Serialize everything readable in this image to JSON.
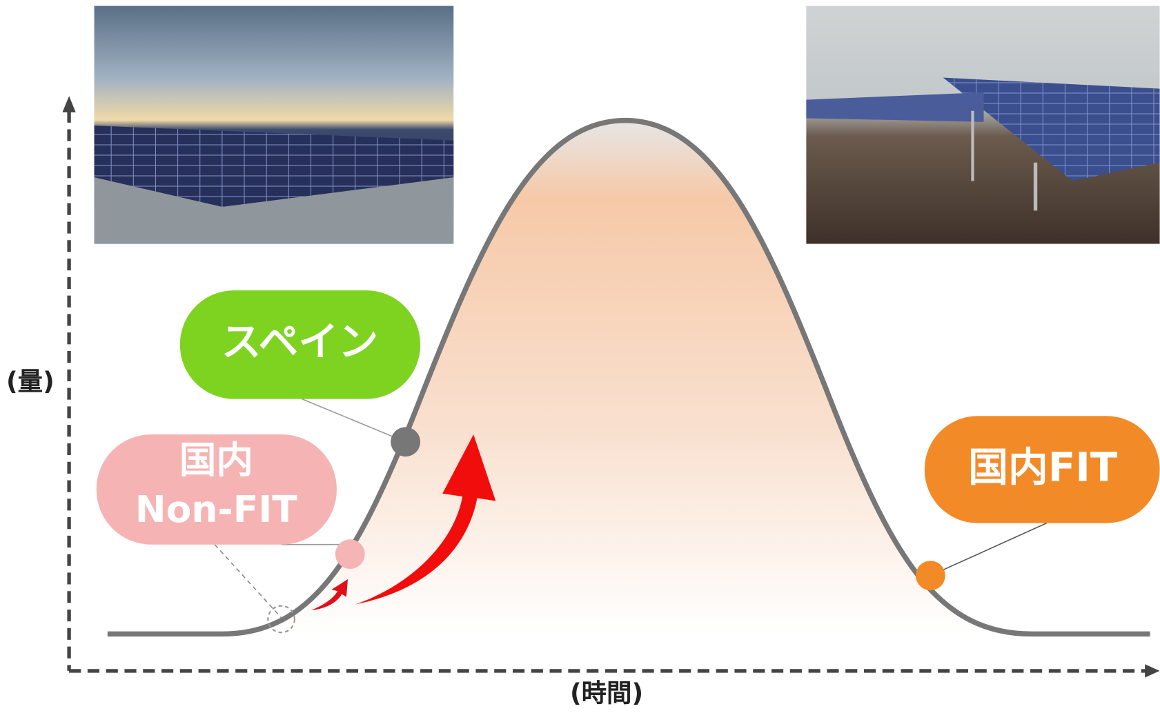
{
  "axis": {
    "y_label": "(量)",
    "x_label": "(時間)"
  },
  "callouts": [
    {
      "lines": [
        "スペイン"
      ]
    },
    {
      "lines": [
        "国内",
        "Non-FIT"
      ]
    },
    {
      "lines": [
        "国内FIT"
      ]
    }
  ]
}
